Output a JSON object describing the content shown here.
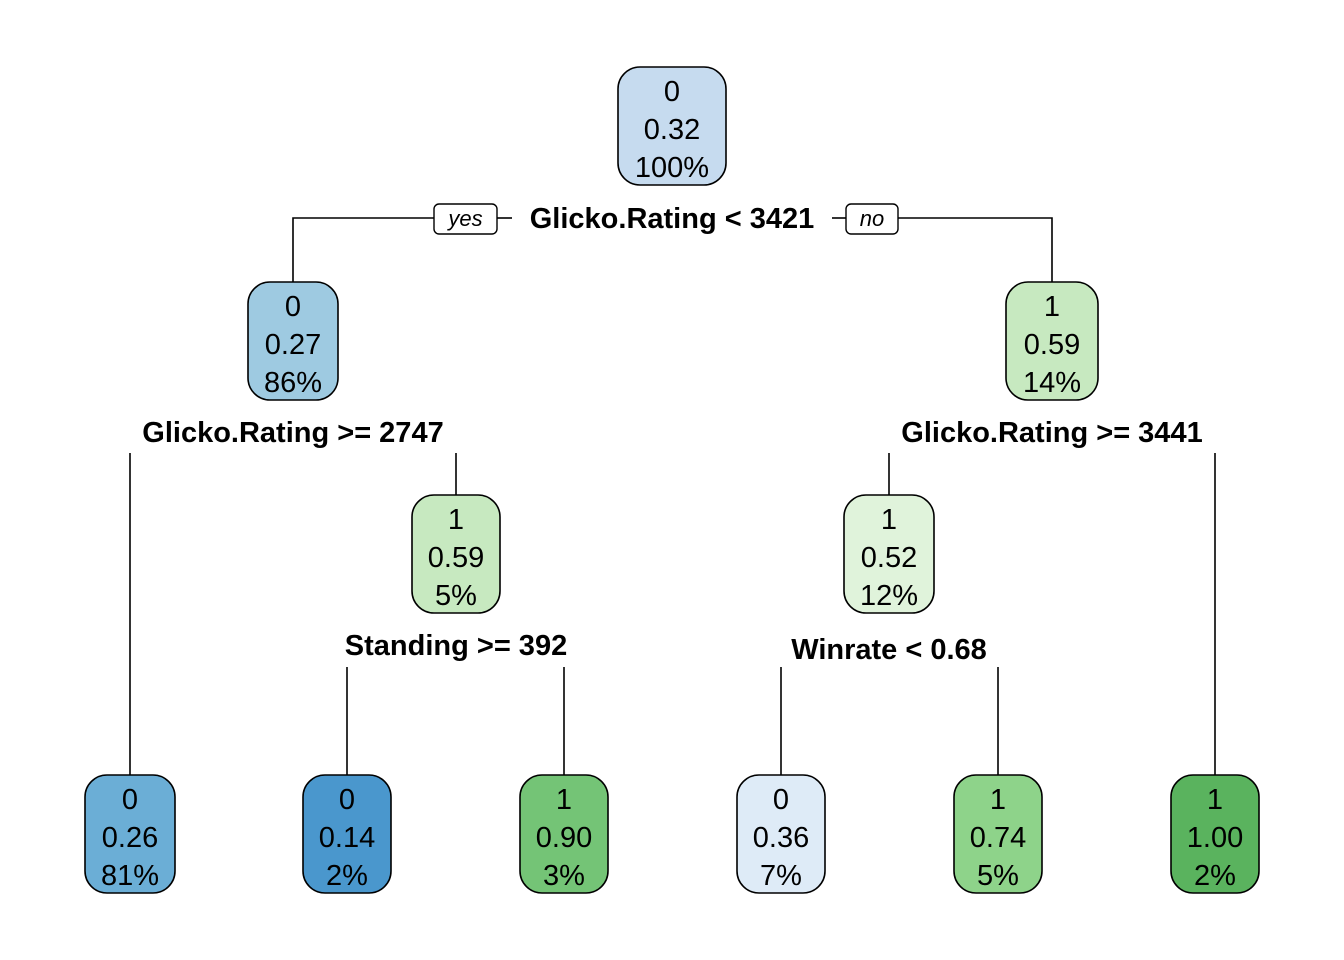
{
  "nodes": [
    {
      "id": "root",
      "class": "0",
      "prob": "0.32",
      "pct": "100%",
      "color": "#c6dbef"
    },
    {
      "id": "n2",
      "class": "0",
      "prob": "0.27",
      "pct": "86%",
      "color": "#9ecae1"
    },
    {
      "id": "n3",
      "class": "1",
      "prob": "0.59",
      "pct": "14%",
      "color": "#c7e9c0"
    },
    {
      "id": "n5",
      "class": "1",
      "prob": "0.59",
      "pct": "5%",
      "color": "#c7e9c0"
    },
    {
      "id": "n6",
      "class": "1",
      "prob": "0.52",
      "pct": "12%",
      "color": "#e0f3db"
    },
    {
      "id": "leaf4",
      "class": "0",
      "prob": "0.26",
      "pct": "81%",
      "color": "#6baed6"
    },
    {
      "id": "leaf10",
      "class": "0",
      "prob": "0.14",
      "pct": "2%",
      "color": "#4a97cd"
    },
    {
      "id": "leaf11",
      "class": "1",
      "prob": "0.90",
      "pct": "3%",
      "color": "#74c476"
    },
    {
      "id": "leaf12",
      "class": "0",
      "prob": "0.36",
      "pct": "7%",
      "color": "#deebf7"
    },
    {
      "id": "leaf13",
      "class": "1",
      "prob": "0.74",
      "pct": "5%",
      "color": "#8ed38a"
    },
    {
      "id": "leaf7",
      "class": "1",
      "prob": "1.00",
      "pct": "2%",
      "color": "#5ab35e"
    }
  ],
  "splits": [
    {
      "id": "root",
      "label": "Glicko.Rating < 3421"
    },
    {
      "id": "n2",
      "label": "Glicko.Rating >= 2747"
    },
    {
      "id": "n3",
      "label": "Glicko.Rating >= 3441"
    },
    {
      "id": "n5",
      "label": "Standing >= 392"
    },
    {
      "id": "n6",
      "label": "Winrate < 0.68"
    }
  ],
  "branch_tags": {
    "yes": "yes",
    "no": "no"
  }
}
